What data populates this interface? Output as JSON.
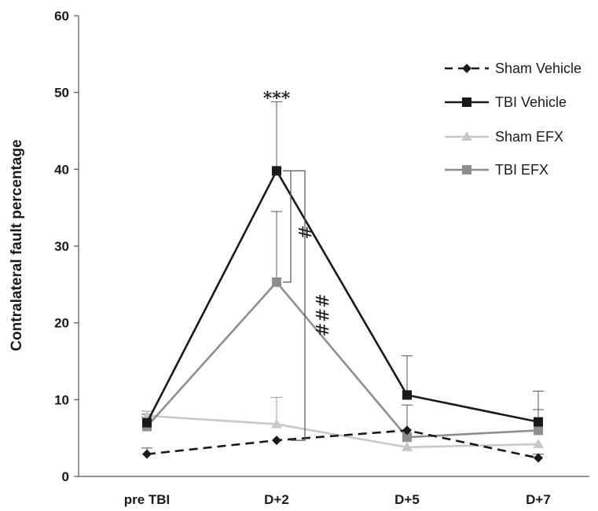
{
  "chart_data": {
    "type": "line",
    "ylabel": "Contralateral fault percentage",
    "xlabel": "",
    "categories": [
      "pre TBI",
      "D+2",
      "D+5",
      "D+7"
    ],
    "ylim": [
      0,
      60
    ],
    "yticks": [
      0,
      10,
      20,
      30,
      40,
      50,
      60
    ],
    "legend_position": "top-right",
    "series": [
      {
        "name": "Sham Vehicle",
        "values": [
          2.9,
          4.7,
          6.0,
          2.4
        ],
        "error": [
          0.8,
          0.0,
          0.0,
          0.5
        ],
        "color": "#1a1a1a",
        "dash": true,
        "marker": "diamond"
      },
      {
        "name": "TBI Vehicle",
        "values": [
          7.0,
          39.8,
          10.6,
          7.1
        ],
        "error": [
          0.7,
          9.0,
          5.1,
          4.0
        ],
        "color": "#1a1a1a",
        "dash": false,
        "marker": "square"
      },
      {
        "name": "Sham EFX",
        "values": [
          7.9,
          6.8,
          3.8,
          4.2
        ],
        "error": [
          0.6,
          3.5,
          0.0,
          0.0
        ],
        "color": "#c8c8c8",
        "dash": false,
        "marker": "triangle"
      },
      {
        "name": "TBI EFX",
        "values": [
          6.5,
          25.3,
          5.1,
          6.0
        ],
        "error": [
          1.6,
          9.2,
          4.2,
          2.7
        ],
        "color": "#8e8e8e",
        "dash": false,
        "marker": "square"
      }
    ],
    "annotations": [
      {
        "text": "***",
        "category": "D+2",
        "y": 48.5
      },
      {
        "text": "#",
        "category": "D+2",
        "y": 31.8
      },
      {
        "text": "###",
        "category": "D+2",
        "y": 21.0
      }
    ]
  }
}
